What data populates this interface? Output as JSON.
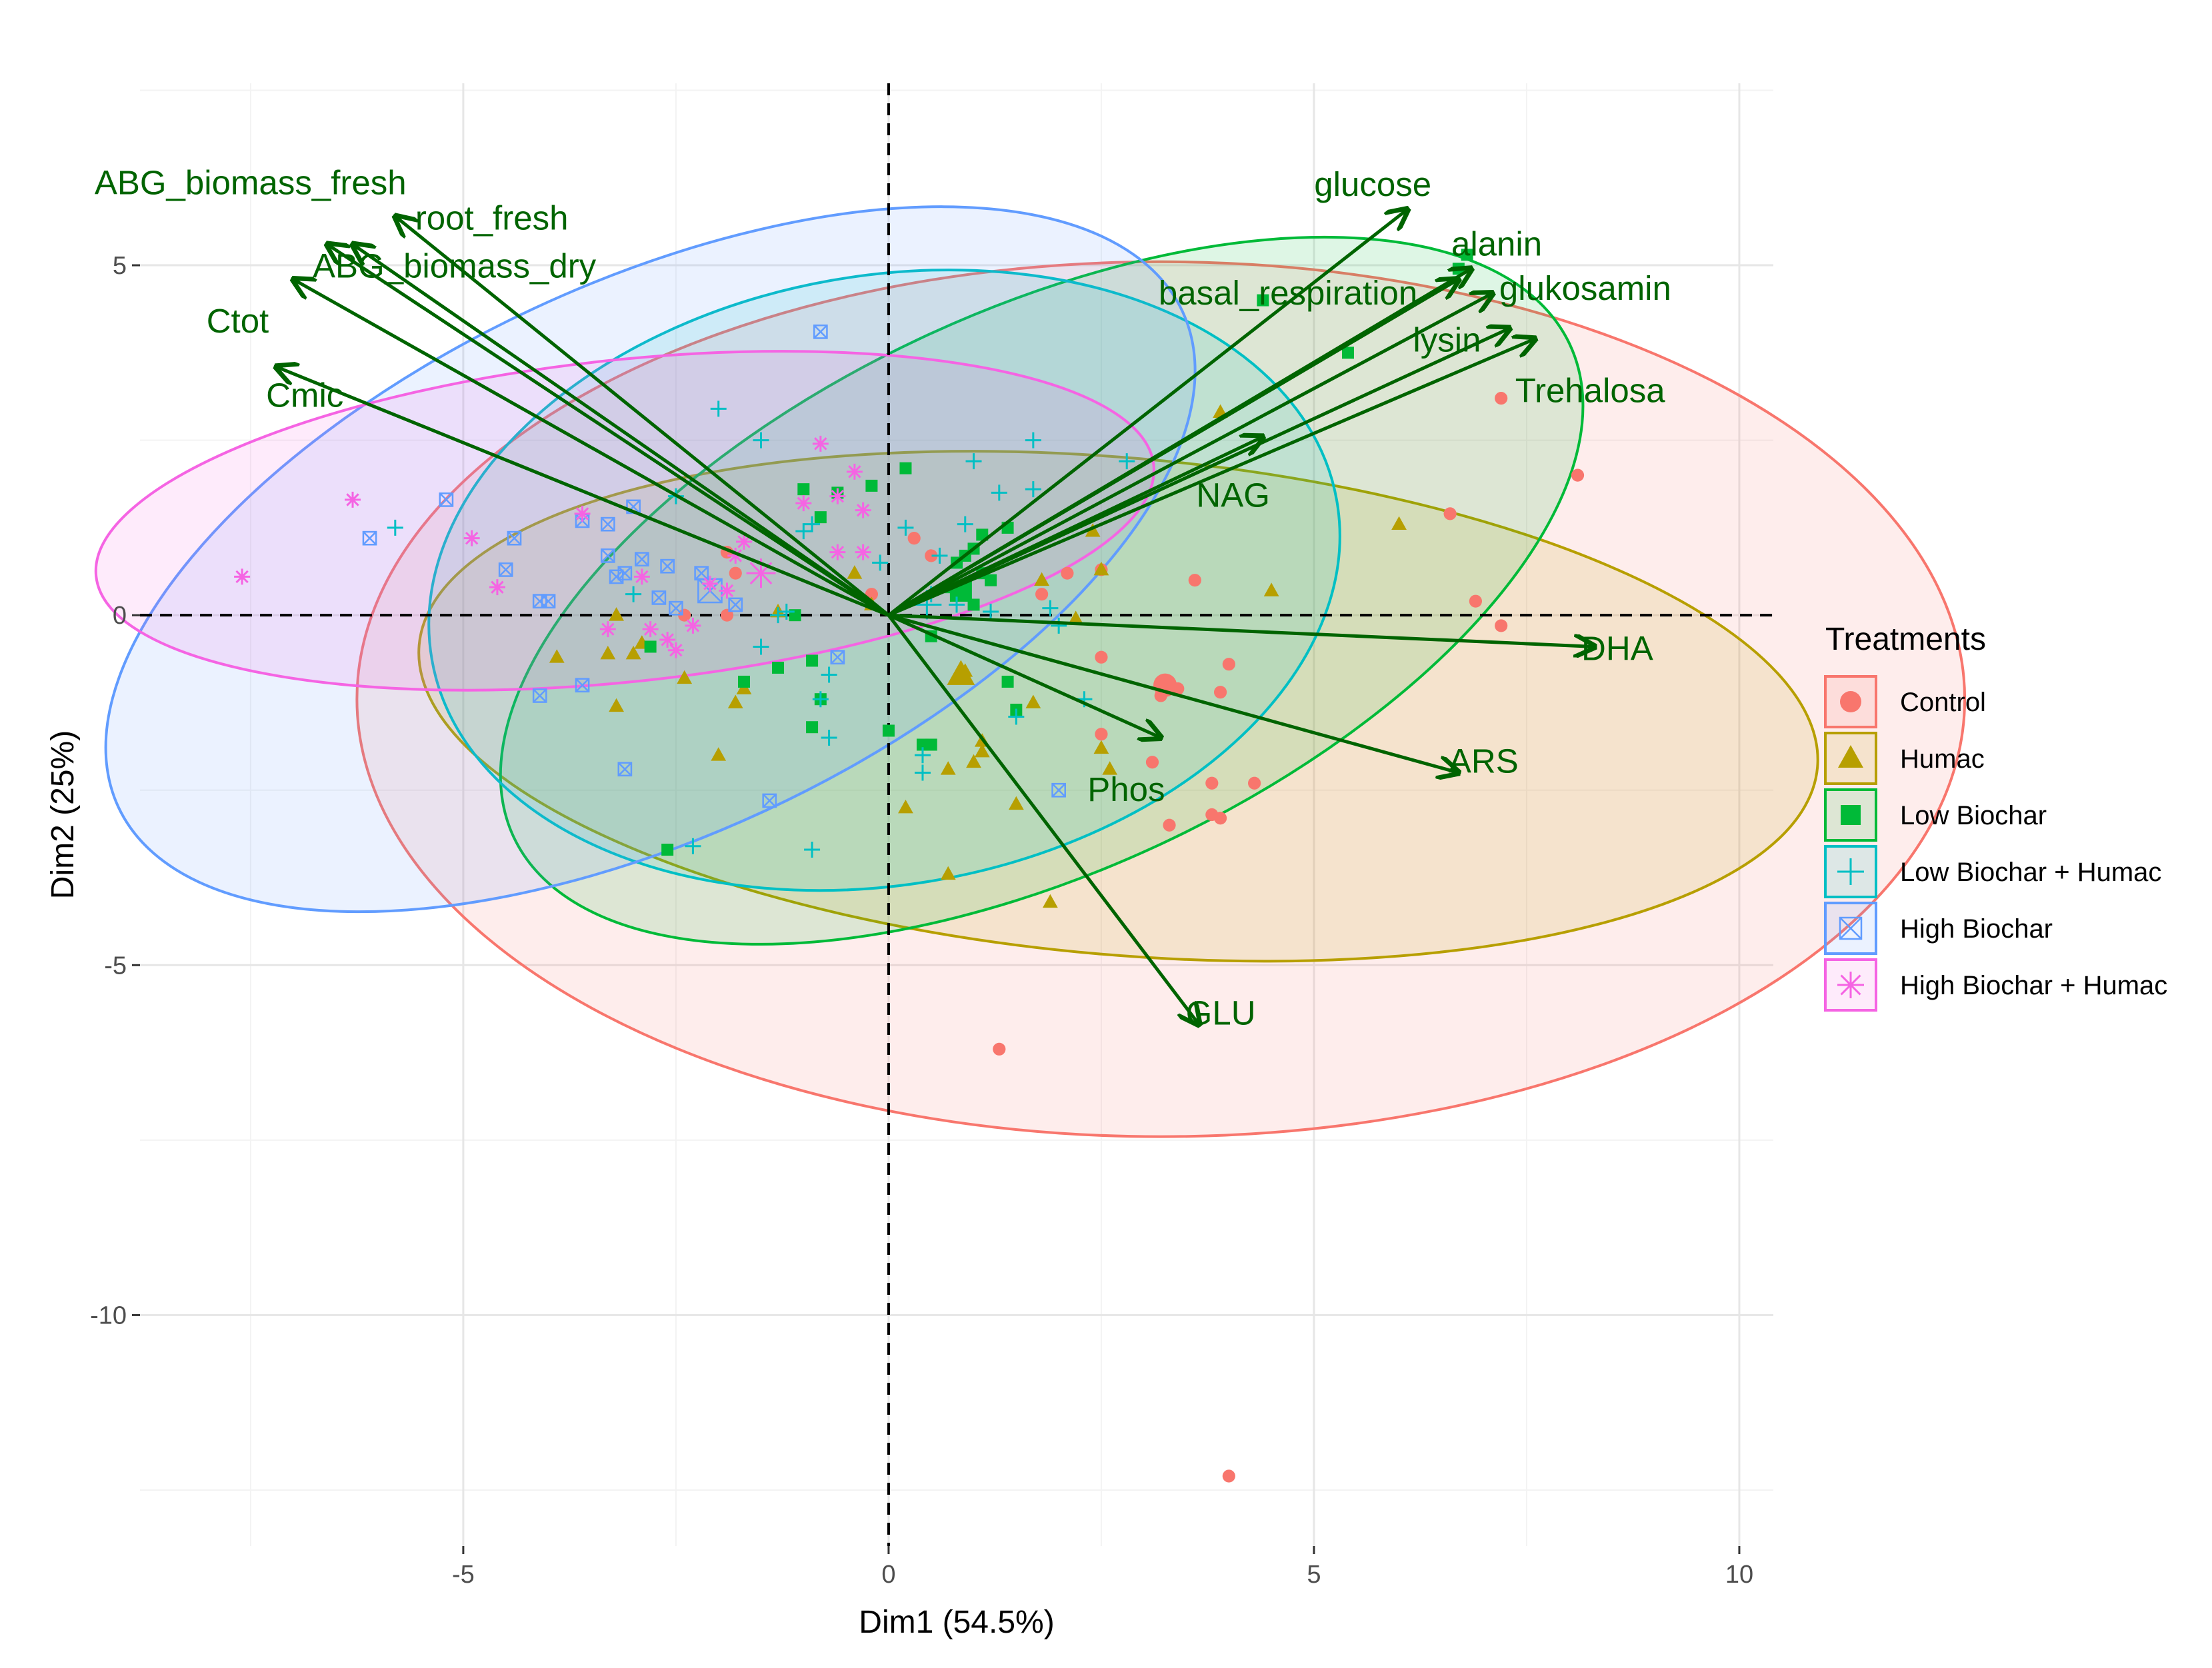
{
  "chart_data": {
    "type": "scatter",
    "subtype": "pca-biplot",
    "xlabel": "Dim1 (54.5%)",
    "ylabel": "Dim2 (25%)",
    "xlim": [
      -8.8,
      10.4
    ],
    "ylim": [
      -13.3,
      7.6
    ],
    "x_ticks": [
      -5,
      0,
      5,
      10
    ],
    "x_tick_labels": [
      "-5",
      "0",
      "5",
      "10"
    ],
    "y_ticks": [
      -10,
      -5,
      0,
      5
    ],
    "y_tick_labels": [
      "-10",
      "-5",
      "0",
      "5"
    ],
    "grid": true,
    "reference_lines": {
      "x": 0,
      "y": 0,
      "style": "dashed"
    },
    "legend": {
      "title": "Treatments",
      "position": "right"
    },
    "series": [
      {
        "name": "Control",
        "color": "#F8766D",
        "shape": "circle",
        "ellipse": {
          "cx": 3.2,
          "cy": -1.2,
          "rx": 9.45,
          "ry": 6.25,
          "angle_deg": 0
        },
        "centroid": [
          3.25,
          -1.0
        ],
        "points": [
          [
            8.1,
            2.0
          ],
          [
            7.2,
            3.1
          ],
          [
            6.6,
            1.45
          ],
          [
            6.9,
            0.2
          ],
          [
            7.2,
            -0.15
          ],
          [
            3.9,
            -1.1
          ],
          [
            3.2,
            -1.15
          ],
          [
            3.4,
            -1.05
          ],
          [
            4.0,
            -0.7
          ],
          [
            3.8,
            -2.4
          ],
          [
            4.3,
            -2.4
          ],
          [
            3.8,
            -2.85
          ],
          [
            3.9,
            -2.9
          ],
          [
            3.3,
            -3.0
          ],
          [
            3.1,
            -2.1
          ],
          [
            2.5,
            -0.6
          ],
          [
            2.5,
            0.65
          ],
          [
            2.1,
            0.6
          ],
          [
            1.8,
            0.3
          ],
          [
            0.5,
            0.85
          ],
          [
            0.3,
            1.1
          ],
          [
            -0.2,
            0.3
          ],
          [
            -1.8,
            0.6
          ],
          [
            -1.9,
            0.0
          ],
          [
            -1.9,
            0.9
          ],
          [
            -2.4,
            0.0
          ],
          [
            1.3,
            -6.2
          ],
          [
            4.0,
            -12.3
          ],
          [
            2.5,
            -1.7
          ],
          [
            3.6,
            0.5
          ]
        ]
      },
      {
        "name": "Humac",
        "color": "#B79F00",
        "shape": "triangle",
        "ellipse": {
          "cx": 2.7,
          "cy": -1.3,
          "rx": 8.25,
          "ry": 3.55,
          "angle_deg": 5
        },
        "centroid": [
          0.85,
          -0.85
        ],
        "points": [
          [
            3.9,
            2.9
          ],
          [
            6.0,
            1.3
          ],
          [
            4.5,
            0.35
          ],
          [
            2.5,
            0.65
          ],
          [
            2.4,
            1.2
          ],
          [
            1.8,
            0.5
          ],
          [
            2.2,
            -0.05
          ],
          [
            1.7,
            -1.25
          ],
          [
            1.1,
            -1.8
          ],
          [
            1.0,
            -2.1
          ],
          [
            0.7,
            -2.2
          ],
          [
            0.2,
            -2.75
          ],
          [
            0.7,
            -3.7
          ],
          [
            1.5,
            -2.7
          ],
          [
            1.9,
            -4.1
          ],
          [
            1.1,
            -1.95
          ],
          [
            0.9,
            -0.8
          ],
          [
            -0.2,
            0.15
          ],
          [
            -0.4,
            0.6
          ],
          [
            -1.3,
            0.05
          ],
          [
            -1.7,
            -1.05
          ],
          [
            -1.8,
            -1.25
          ],
          [
            -2.0,
            -2.0
          ],
          [
            -2.4,
            -0.9
          ],
          [
            -2.9,
            -0.4
          ],
          [
            -3.2,
            0.0
          ],
          [
            -3.0,
            -0.55
          ],
          [
            -3.3,
            -0.55
          ],
          [
            -3.9,
            -0.6
          ],
          [
            -3.2,
            -1.3
          ],
          [
            2.5,
            -1.9
          ],
          [
            2.6,
            -2.2
          ]
        ]
      },
      {
        "name": "Low Biochar",
        "color": "#00BA38",
        "shape": "square",
        "ellipse": {
          "cx": 1.8,
          "cy": 0.35,
          "rx": 6.85,
          "ry": 4.0,
          "angle_deg": -25
        },
        "centroid": [
          0.85,
          0.35
        ],
        "points": [
          [
            6.8,
            5.15
          ],
          [
            6.7,
            4.95
          ],
          [
            5.4,
            3.75
          ],
          [
            4.4,
            4.5
          ],
          [
            1.4,
            1.25
          ],
          [
            1.1,
            1.15
          ],
          [
            1.0,
            0.95
          ],
          [
            0.9,
            0.85
          ],
          [
            0.8,
            0.75
          ],
          [
            1.1,
            0.6
          ],
          [
            1.2,
            0.5
          ],
          [
            1.0,
            0.15
          ],
          [
            0.2,
            2.1
          ],
          [
            -0.2,
            1.85
          ],
          [
            -0.6,
            1.75
          ],
          [
            -1.0,
            1.8
          ],
          [
            -0.8,
            1.4
          ],
          [
            0.7,
            0.4
          ],
          [
            0.5,
            -0.3
          ],
          [
            0.4,
            -1.85
          ],
          [
            0.5,
            -1.85
          ],
          [
            0.0,
            -1.65
          ],
          [
            -0.9,
            -0.65
          ],
          [
            -1.3,
            -0.75
          ],
          [
            -0.9,
            -1.6
          ],
          [
            -0.8,
            -1.2
          ],
          [
            -1.7,
            -0.95
          ],
          [
            -1.1,
            0.0
          ],
          [
            -2.8,
            -0.45
          ],
          [
            -2.6,
            -3.35
          ],
          [
            1.4,
            -0.95
          ],
          [
            1.5,
            -1.35
          ]
        ]
      },
      {
        "name": "Low Biochar + Humac",
        "color": "#00BFC4",
        "shape": "plus",
        "ellipse": {
          "cx": -0.05,
          "cy": 0.5,
          "rx": 5.4,
          "ry": 4.35,
          "angle_deg": -10
        },
        "centroid": [
          0.45,
          0.15
        ],
        "points": [
          [
            2.8,
            2.2
          ],
          [
            1.7,
            1.8
          ],
          [
            1.0,
            2.2
          ],
          [
            1.7,
            2.5
          ],
          [
            1.3,
            1.75
          ],
          [
            0.9,
            1.3
          ],
          [
            0.2,
            1.25
          ],
          [
            -0.1,
            0.75
          ],
          [
            0.6,
            0.85
          ],
          [
            0.5,
            0.3
          ],
          [
            0.8,
            0.15
          ],
          [
            1.2,
            0.05
          ],
          [
            1.9,
            0.1
          ],
          [
            2.0,
            -0.15
          ],
          [
            2.3,
            -1.2
          ],
          [
            1.5,
            -1.45
          ],
          [
            0.4,
            -2.25
          ],
          [
            0.4,
            -2.0
          ],
          [
            -0.7,
            -0.85
          ],
          [
            -0.8,
            -1.2
          ],
          [
            -0.7,
            -1.75
          ],
          [
            -1.5,
            -0.45
          ],
          [
            -1.3,
            0.0
          ],
          [
            -1.0,
            1.2
          ],
          [
            -0.9,
            1.3
          ],
          [
            -1.5,
            2.5
          ],
          [
            -2.0,
            2.95
          ],
          [
            -2.5,
            1.7
          ],
          [
            -3.0,
            0.3
          ],
          [
            -2.3,
            -3.3
          ],
          [
            -0.9,
            -3.35
          ],
          [
            -5.8,
            1.25
          ],
          [
            -1.2,
            0.05
          ]
        ]
      },
      {
        "name": "High Biochar",
        "color": "#619CFF",
        "shape": "square-cross",
        "ellipse": {
          "cx": -2.8,
          "cy": 0.8,
          "rx": 6.9,
          "ry": 3.95,
          "angle_deg": -25
        },
        "centroid": [
          -2.1,
          0.35
        ],
        "points": [
          [
            -0.8,
            4.05
          ],
          [
            -6.1,
            1.1
          ],
          [
            -5.2,
            1.65
          ],
          [
            -4.4,
            1.1
          ],
          [
            -3.6,
            1.35
          ],
          [
            -3.3,
            1.3
          ],
          [
            -3.0,
            1.55
          ],
          [
            -4.5,
            0.65
          ],
          [
            -3.3,
            0.85
          ],
          [
            -3.1,
            0.6
          ],
          [
            -2.9,
            0.8
          ],
          [
            -3.2,
            0.55
          ],
          [
            -2.6,
            0.7
          ],
          [
            -2.2,
            0.6
          ],
          [
            -4.1,
            0.2
          ],
          [
            -4.0,
            0.2
          ],
          [
            -2.7,
            0.25
          ],
          [
            -2.5,
            0.1
          ],
          [
            -1.8,
            0.15
          ],
          [
            -3.6,
            -1.0
          ],
          [
            -4.1,
            -1.15
          ],
          [
            -3.1,
            -2.2
          ],
          [
            -1.4,
            -2.65
          ],
          [
            2.0,
            -2.5
          ],
          [
            -0.6,
            -0.6
          ]
        ]
      },
      {
        "name": "High Biochar + Humac",
        "color": "#F564E3",
        "shape": "asterisk",
        "ellipse": {
          "cx": -3.1,
          "cy": 1.35,
          "rx": 6.25,
          "ry": 2.3,
          "angle_deg": -6
        },
        "centroid": [
          -1.5,
          0.6
        ],
        "points": [
          [
            -7.6,
            0.55
          ],
          [
            -6.3,
            1.65
          ],
          [
            -4.9,
            1.1
          ],
          [
            -4.6,
            0.4
          ],
          [
            -3.6,
            1.45
          ],
          [
            -2.9,
            0.55
          ],
          [
            -2.8,
            -0.2
          ],
          [
            -2.6,
            -0.35
          ],
          [
            -2.5,
            -0.5
          ],
          [
            -2.3,
            -0.15
          ],
          [
            -1.8,
            0.85
          ],
          [
            -1.7,
            1.05
          ],
          [
            -1.0,
            1.6
          ],
          [
            -0.8,
            2.45
          ],
          [
            -0.6,
            1.7
          ],
          [
            -0.4,
            2.05
          ],
          [
            -0.3,
            1.5
          ],
          [
            -0.6,
            0.9
          ],
          [
            -0.3,
            0.9
          ],
          [
            -1.9,
            0.35
          ],
          [
            -3.3,
            -0.2
          ],
          [
            -2.1,
            0.45
          ]
        ]
      }
    ],
    "variables": [
      {
        "name": "ABG_biomass_fresh",
        "x": -6.6,
        "y": 5.3
      },
      {
        "name": "root_fresh",
        "x": -5.8,
        "y": 5.7
      },
      {
        "name": "ABG_biomass_dry",
        "x": -6.3,
        "y": 5.3
      },
      {
        "name": "Ctot",
        "x": -7.0,
        "y": 4.8
      },
      {
        "name": "Cmic",
        "x": -7.2,
        "y": 3.55
      },
      {
        "name": "glucose",
        "x": 6.1,
        "y": 5.8
      },
      {
        "name": "alanin",
        "x": 6.85,
        "y": 4.95
      },
      {
        "name": "basal_respiration",
        "x": 6.7,
        "y": 4.8
      },
      {
        "name": "glukosamin",
        "x": 7.1,
        "y": 4.6
      },
      {
        "name": "lysin",
        "x": 7.3,
        "y": 4.1
      },
      {
        "name": "Trehalosa",
        "x": 7.6,
        "y": 3.95
      },
      {
        "name": "NAG",
        "x": 4.4,
        "y": 2.55
      },
      {
        "name": "DHA",
        "x": 8.3,
        "y": -0.45
      },
      {
        "name": "ARS",
        "x": 6.7,
        "y": -2.25
      },
      {
        "name": "Phos",
        "x": 3.2,
        "y": -1.75
      },
      {
        "name": "GLU",
        "x": 3.65,
        "y": -5.85
      }
    ]
  }
}
